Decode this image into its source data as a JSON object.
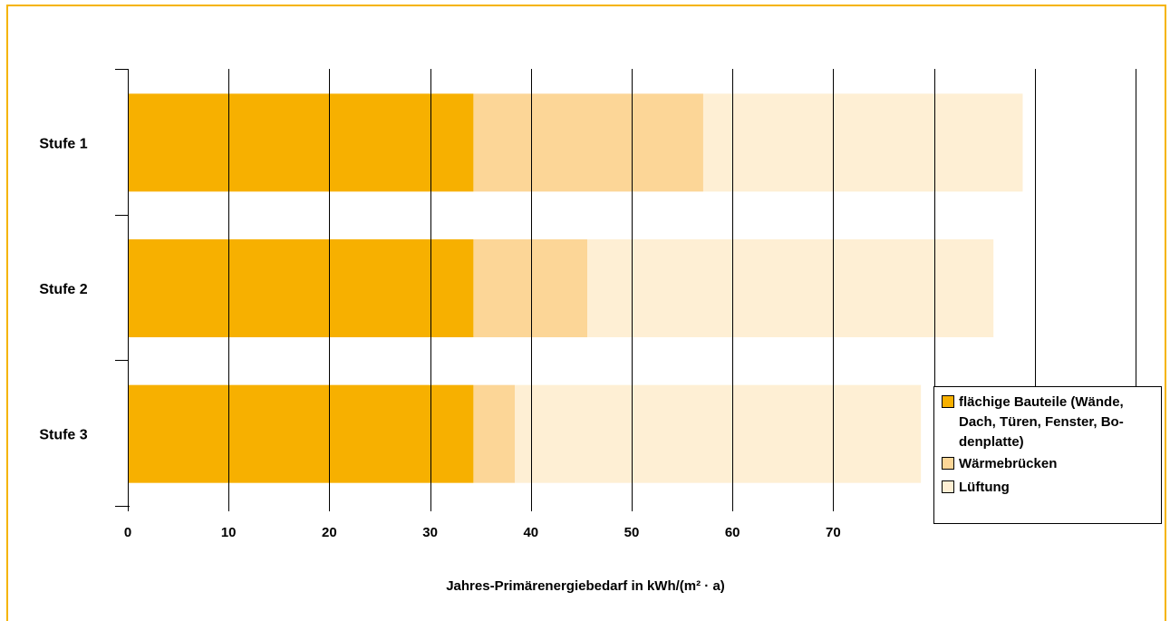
{
  "chart_data": {
    "type": "bar",
    "orientation": "horizontal",
    "stacked": true,
    "categories": [
      "Stufe 1",
      "Stufe 2",
      "Stufe 3"
    ],
    "series": [
      {
        "name": "flächige Bauteile (Wände,\nDach, Türen, Fenster, Bo-\ndenplatte)",
        "values": [
          34.3,
          34.3,
          34.3
        ],
        "color": "#F7B000"
      },
      {
        "name": "Wärmebrücken",
        "values": [
          22.8,
          11.3,
          4.1
        ],
        "color": "#FCD697"
      },
      {
        "name": "Lüftung",
        "values": [
          31.7,
          40.3,
          40.3
        ],
        "color": "#FEEFD4"
      }
    ],
    "xticks": [
      "0",
      "10",
      "20",
      "30",
      "40",
      "50",
      "60",
      "70"
    ],
    "xlim": [
      0,
      100
    ],
    "xlabel": "Jahres-Primärenergiebedarf  in kWh/(m² · a)",
    "grid": true,
    "legend_position": "bottom-right"
  },
  "colors": {
    "frame": "#F5B400",
    "grid": "#000000"
  }
}
